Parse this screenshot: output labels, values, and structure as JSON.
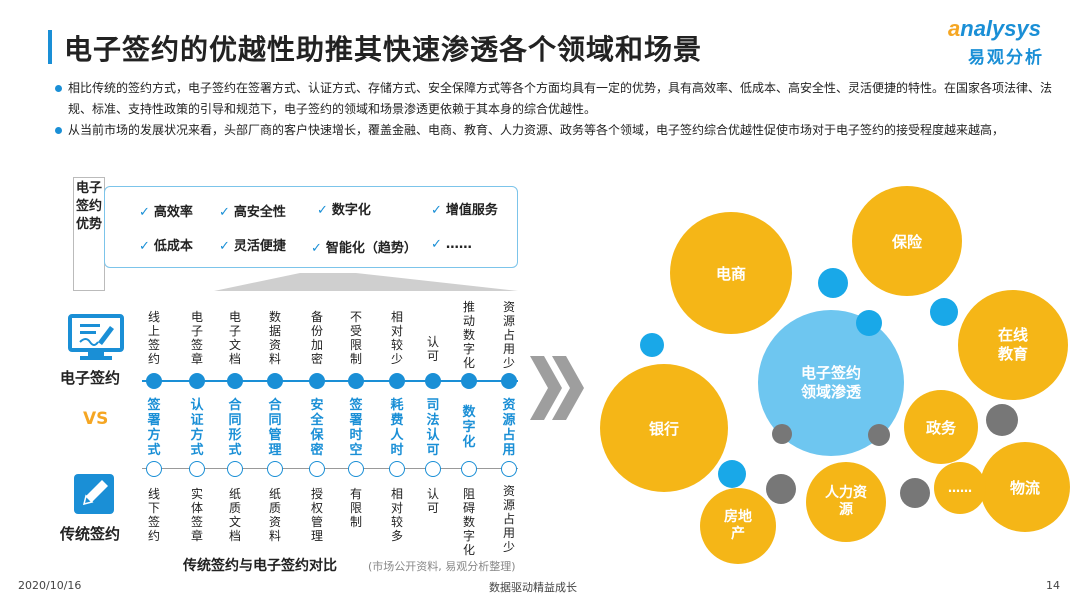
{
  "header": {
    "title": "电子签约的优越性助推其快速渗透各个领域和场景",
    "logo_en_first": "a",
    "logo_en_rest": "nalysys",
    "logo_cn": "易观分析"
  },
  "bullets": [
    "相比传统的签约方式，电子签约在签署方式、认证方式、存储方式、安全保障方式等各个方面均具有一定的优势，具有高效率、低成本、高安全性、灵活便捷的特性。在国家各项法律、法规、标准、支持性政策的引导和规范下，电子签约的领域和场景渗透更依赖于其本身的综合优越性。",
    "从当前市场的发展状况来看，头部厂商的客户快速增长，覆盖金融、电商、教育、人力资源、政务等各个领域，电子签约综合优越性促使市场对于电子签约的接受程度越来越高，"
  ],
  "advantages": {
    "label": "电子签约优势",
    "check": "✓",
    "items": [
      "高效率",
      "高安全性",
      "数字化",
      "增值服务",
      "低成本",
      "灵活便捷",
      "智能化（趋势）",
      "……"
    ]
  },
  "comparison": {
    "electronic_label": "电子签约",
    "vs_label": "VS",
    "traditional_label": "传统签约",
    "columns": [
      {
        "electronic": "线上签约",
        "aspect": "签署方式",
        "traditional": "线下签约"
      },
      {
        "electronic": "电子签章",
        "aspect": "认证方式",
        "traditional": "实体签章"
      },
      {
        "electronic": "电子文档",
        "aspect": "合同形式",
        "traditional": "纸质文档"
      },
      {
        "electronic": "数据资料",
        "aspect": "合同管理",
        "traditional": "纸质资料"
      },
      {
        "electronic": "备份加密",
        "aspect": "安全保密",
        "traditional": "授权管理"
      },
      {
        "electronic": "不受限制",
        "aspect": "签署时空",
        "traditional": "有限制"
      },
      {
        "electronic": "相对较少",
        "aspect": "耗费人时",
        "traditional": "相对较多"
      },
      {
        "electronic": "认可",
        "aspect": "司法认可",
        "traditional": "认可"
      },
      {
        "electronic": "推动数字化",
        "aspect": "数字化",
        "traditional": "阻碍数字化"
      },
      {
        "electronic": "资源占用少",
        "aspect": "资源占用",
        "traditional": "资源占用少"
      }
    ],
    "caption": "传统签约与电子签约对比",
    "source": "(市场公开资料, 易观分析整理)"
  },
  "bubbles": {
    "center": "电子签约领域渗透",
    "items": [
      "保险",
      "电商",
      "在线教育",
      "银行",
      "政务",
      "物流",
      "人力资源",
      "……",
      "房地产"
    ]
  },
  "colors": {
    "brand_blue": "#1a8fd6",
    "accent_orange": "#f5a623",
    "bubble_yellow": "#f5b617",
    "bubble_center": "#6ec6f0"
  },
  "footer": {
    "date": "2020/10/16",
    "slogan": "数据驱动精益成长",
    "page": "14"
  }
}
